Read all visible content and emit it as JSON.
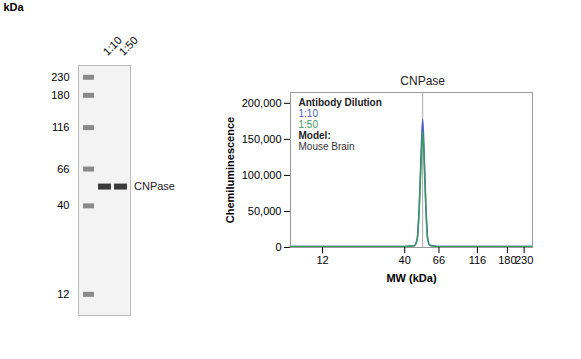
{
  "chart_data": [
    {
      "type": "lane_view",
      "y_label": "kDa",
      "log": "y",
      "ylim": [
        9,
        270
      ],
      "yticks": [
        12,
        40,
        66,
        116,
        180,
        230
      ],
      "lanes": [
        null,
        "1:10",
        "1:50"
      ],
      "ladder": [
        230,
        180,
        116,
        66,
        40,
        12
      ],
      "bands": [
        {
          "lane": "1:10",
          "mw": 52
        },
        {
          "lane": "1:50",
          "mw": 52
        }
      ],
      "band_label": "CNPase"
    },
    {
      "type": "line",
      "x_label": "MW (kDa)",
      "y_label": "Chemiluminescence",
      "log": "x",
      "xlim": [
        7.5,
        260
      ],
      "xticks": [
        12,
        40,
        66,
        116,
        180,
        230
      ],
      "ylim": [
        0,
        215000
      ],
      "yticks": [
        0,
        {
          "value": 50000,
          "label": "50,000"
        },
        {
          "value": 100000,
          "label": "100,000"
        },
        {
          "value": 150000,
          "label": "150,000"
        },
        {
          "value": 200000,
          "label": "200,000"
        }
      ],
      "legend": "top-left",
      "legend_title": "Antibody Dilution",
      "model_label": "Model:",
      "model": "Mouse Brain",
      "x": [
        7.5,
        20,
        40,
        46,
        48,
        49.5,
        51,
        52,
        53,
        54.5,
        56,
        58,
        65,
        120,
        260
      ],
      "series": [
        {
          "name": "1:10",
          "color": "#4f63c9",
          "values": [
            1500,
            1500,
            1500,
            2500,
            12000,
            60000,
            140000,
            178000,
            140000,
            60000,
            12000,
            3000,
            1500,
            1500,
            1500
          ]
        },
        {
          "name": "1:50",
          "color": "#3c9a5f",
          "values": [
            1500,
            1500,
            1500,
            2300,
            11000,
            54000,
            126000,
            160000,
            126000,
            54000,
            11000,
            2800,
            1500,
            1500,
            1500
          ]
        }
      ],
      "annotations": [
        {
          "x": 52,
          "text": "CNPase"
        }
      ]
    }
  ]
}
